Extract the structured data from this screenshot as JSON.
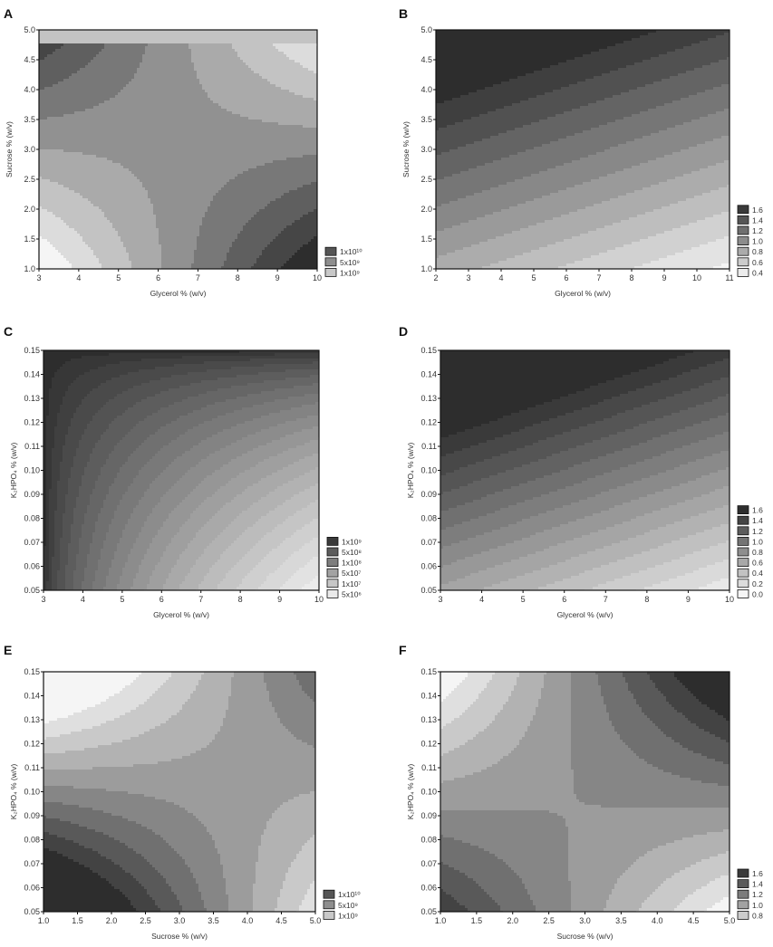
{
  "chart_data": [
    {
      "panel": "A",
      "type": "heatmap",
      "pattern": "saddleA",
      "xlabel": "Glycerol % (w/v)",
      "ylabel": "Sucrose % (w/v)",
      "xlim": [
        3,
        10
      ],
      "ylim": [
        1.0,
        5.0
      ],
      "x_ticks": [
        "3",
        "4",
        "5",
        "6",
        "7",
        "8",
        "9",
        "10"
      ],
      "y_ticks": [
        "1.0",
        "1.5",
        "2.0",
        "2.5",
        "3.0",
        "3.5",
        "4.0",
        "4.5",
        "5.0"
      ],
      "levels": 9,
      "legend": [
        {
          "label": "1x10¹⁰",
          "color": "#555555"
        },
        {
          "label": "5x10⁹",
          "color": "#8e8e8e"
        },
        {
          "label": "1x10⁹",
          "color": "#c8c8c8"
        }
      ]
    },
    {
      "panel": "B",
      "type": "heatmap",
      "pattern": "linearB",
      "xlabel": "Glycerol % (w/v)",
      "ylabel": "Sucrose % (w/v)",
      "xlim": [
        2,
        11
      ],
      "ylim": [
        1.0,
        5.0
      ],
      "x_ticks": [
        "2",
        "3",
        "4",
        "5",
        "6",
        "7",
        "8",
        "9",
        "10",
        "11"
      ],
      "y_ticks": [
        "1.0",
        "1.5",
        "2.0",
        "2.5",
        "3.0",
        "3.5",
        "4.0",
        "4.5",
        "5.0"
      ],
      "levels": 12,
      "legend": [
        {
          "label": "1.6",
          "color": "#3a3a3a"
        },
        {
          "label": "1.4",
          "color": "#555555"
        },
        {
          "label": "1.2",
          "color": "#6f6f6f"
        },
        {
          "label": "1.0",
          "color": "#8c8c8c"
        },
        {
          "label": "0.8",
          "color": "#ababab"
        },
        {
          "label": "0.6",
          "color": "#cccccc"
        },
        {
          "label": "0.4",
          "color": "#ececec"
        }
      ]
    },
    {
      "panel": "C",
      "type": "heatmap",
      "pattern": "cornerC",
      "xlabel": "Glycerol % (w/v)",
      "ylabel": "K₂HPO₄ % (w/v)",
      "xlim": [
        3,
        10
      ],
      "ylim": [
        0.05,
        0.15
      ],
      "x_ticks": [
        "3",
        "4",
        "5",
        "6",
        "7",
        "8",
        "9",
        "10"
      ],
      "y_ticks": [
        "0.05",
        "0.06",
        "0.07",
        "0.08",
        "0.09",
        "0.10",
        "0.11",
        "0.12",
        "0.13",
        "0.14",
        "0.15"
      ],
      "levels": 22,
      "legend": [
        {
          "label": "1x10⁹",
          "color": "#3a3a3a"
        },
        {
          "label": "5x10⁸",
          "color": "#5c5c5c"
        },
        {
          "label": "1x10⁸",
          "color": "#7e7e7e"
        },
        {
          "label": "5x10⁷",
          "color": "#a2a2a2"
        },
        {
          "label": "1x10⁷",
          "color": "#c6c6c6"
        },
        {
          "label": "5x10⁶",
          "color": "#eaeaea"
        }
      ]
    },
    {
      "panel": "D",
      "type": "heatmap",
      "pattern": "linearD",
      "xlabel": "Glycerol % (w/v)",
      "ylabel": "K₂HPO₄ % (w/v)",
      "xlim": [
        3,
        10
      ],
      "ylim": [
        0.05,
        0.15
      ],
      "x_ticks": [
        "3",
        "4",
        "5",
        "6",
        "7",
        "8",
        "9",
        "10"
      ],
      "y_ticks": [
        "0.05",
        "0.06",
        "0.07",
        "0.08",
        "0.09",
        "0.10",
        "0.11",
        "0.12",
        "0.13",
        "0.14",
        "0.15"
      ],
      "levels": 16,
      "legend": [
        {
          "label": "1.6",
          "color": "#2e2e2e"
        },
        {
          "label": "1.4",
          "color": "#444444"
        },
        {
          "label": "1.2",
          "color": "#5c5c5c"
        },
        {
          "label": "1.0",
          "color": "#747474"
        },
        {
          "label": "0.8",
          "color": "#8e8e8e"
        },
        {
          "label": "0.6",
          "color": "#a8a8a8"
        },
        {
          "label": "0.4",
          "color": "#c2c2c2"
        },
        {
          "label": "0.2",
          "color": "#dcdcdc"
        },
        {
          "label": "0.0",
          "color": "#f6f6f6"
        }
      ]
    },
    {
      "panel": "E",
      "type": "heatmap",
      "pattern": "saddleE",
      "xlabel": "Sucrose % (w/v)",
      "ylabel": "K₂HPO₄ % (w/v)",
      "xlim": [
        1.0,
        5.0
      ],
      "ylim": [
        0.05,
        0.15
      ],
      "x_ticks": [
        "1.0",
        "1.5",
        "2.0",
        "2.5",
        "3.0",
        "3.5",
        "4.0",
        "4.5",
        "5.0"
      ],
      "y_ticks": [
        "0.05",
        "0.06",
        "0.07",
        "0.08",
        "0.09",
        "0.10",
        "0.11",
        "0.12",
        "0.13",
        "0.14",
        "0.15"
      ],
      "levels": 10,
      "legend": [
        {
          "label": "1x10¹⁰",
          "color": "#555555"
        },
        {
          "label": "5x10⁹",
          "color": "#8e8e8e"
        },
        {
          "label": "1x10⁹",
          "color": "#c8c8c8"
        }
      ]
    },
    {
      "panel": "F",
      "type": "heatmap",
      "pattern": "saddleF",
      "xlabel": "Sucrose % (w/v)",
      "ylabel": "K₂HPO₄ % (w/v)",
      "xlim": [
        1.0,
        5.0
      ],
      "ylim": [
        0.05,
        0.15
      ],
      "x_ticks": [
        "1.0",
        "1.5",
        "2.0",
        "2.5",
        "3.0",
        "3.5",
        "4.0",
        "4.5",
        "5.0"
      ],
      "y_ticks": [
        "0.05",
        "0.06",
        "0.07",
        "0.08",
        "0.09",
        "0.10",
        "0.11",
        "0.12",
        "0.13",
        "0.14",
        "0.15"
      ],
      "levels": 10,
      "legend": [
        {
          "label": "1.6",
          "color": "#3a3a3a"
        },
        {
          "label": "1.4",
          "color": "#5a5a5a"
        },
        {
          "label": "1.2",
          "color": "#7c7c7c"
        },
        {
          "label": "1.0",
          "color": "#a2a2a2"
        },
        {
          "label": "0.8",
          "color": "#cccccc"
        }
      ]
    }
  ]
}
